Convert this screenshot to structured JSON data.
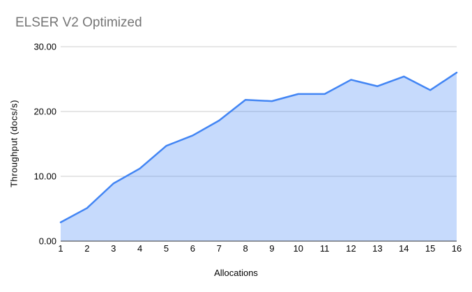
{
  "chart_data": {
    "type": "area",
    "title": "ELSER V2 Optimized",
    "xlabel": "Allocations",
    "ylabel": "Throughput (docs/s)",
    "x": [
      1,
      2,
      3,
      4,
      5,
      6,
      7,
      8,
      9,
      10,
      11,
      12,
      13,
      14,
      15,
      16
    ],
    "x_tick_labels": [
      "1",
      "2",
      "3",
      "4",
      "5",
      "6",
      "7",
      "8",
      "9",
      "10",
      "11",
      "12",
      "13",
      "14",
      "15",
      "16"
    ],
    "series": [
      {
        "name": "Throughput (docs/s)",
        "values": [
          2.9,
          5.1,
          8.9,
          11.2,
          14.7,
          16.3,
          18.6,
          21.8,
          21.6,
          22.7,
          22.7,
          24.9,
          23.9,
          25.4,
          23.3,
          26.0
        ]
      }
    ],
    "xlim": [
      1,
      16
    ],
    "ylim": [
      0,
      30
    ],
    "yticks": [
      0,
      10,
      20,
      30
    ],
    "ytick_labels": [
      "0.00",
      "10.00",
      "20.00",
      "30.00"
    ],
    "grid": true,
    "legend": "none",
    "colors": {
      "line": "#4285f4",
      "fill": "rgba(66,133,244,0.30)",
      "grid": "#cccccc",
      "axis_line": "#333333",
      "tick_text": "#000000",
      "title_text": "#757575"
    }
  }
}
